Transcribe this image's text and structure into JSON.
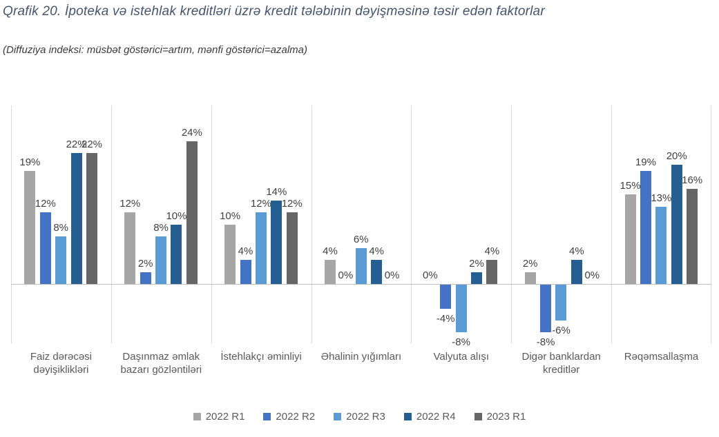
{
  "page": {
    "title": "Qrafik 20. İpoteka və istehlak kreditləri üzrə kredit tələbinin dəyişməsinə təsir edən faktorlar",
    "subtitle": "(Diffuziya indeksi: müsbət göstərici=artım, mənfi göstərici=azalma)"
  },
  "colors": {
    "title_text": "#44546A",
    "data_label_text": "#404040",
    "axis_text": "#595959",
    "separator_line": "#D9D9D9",
    "zero_axis_line": "#BFBFBF",
    "background": "#FFFFFF"
  },
  "chart_data": {
    "type": "bar",
    "title": "Qrafik 20. İpoteka və istehlak kreditləri üzrə kredit tələbinin dəyişməsinə təsir edən faktorlar",
    "subtitle": "(Diffuziya indeksi: müsbət göstərici=artım, mənfi göstərici=azalma)",
    "categories": [
      "Faiz dərəcəsi dəyişiklikləri",
      "Daşınmaz əmlak bazarı gözləntiləri",
      "İstehlakçı əminliyi",
      "Əhalinin yığımları",
      "Valyuta alışı",
      "Digər banklardan kreditlər",
      "Rəqəmsallaşma"
    ],
    "series": [
      {
        "name": "2022 R1",
        "color": "#A6A6A6",
        "values": [
          19,
          12,
          10,
          4,
          0,
          2,
          15
        ]
      },
      {
        "name": "2022 R2",
        "color": "#4472C4",
        "values": [
          12,
          2,
          4,
          0,
          -4,
          -8,
          19
        ]
      },
      {
        "name": "2022 R3",
        "color": "#5B9BD5",
        "values": [
          8,
          8,
          12,
          6,
          -8,
          -6,
          13
        ]
      },
      {
        "name": "2022 R4",
        "color": "#255E91",
        "values": [
          22,
          10,
          14,
          4,
          2,
          4,
          20
        ]
      },
      {
        "name": "2023 R1",
        "color": "#666666",
        "values": [
          22,
          24,
          12,
          0,
          4,
          0,
          16
        ]
      }
    ],
    "value_format": "percent",
    "data_labels": true,
    "ylim": [
      -10,
      30
    ],
    "grid": "vertical-category-separators",
    "legend_position": "bottom"
  }
}
